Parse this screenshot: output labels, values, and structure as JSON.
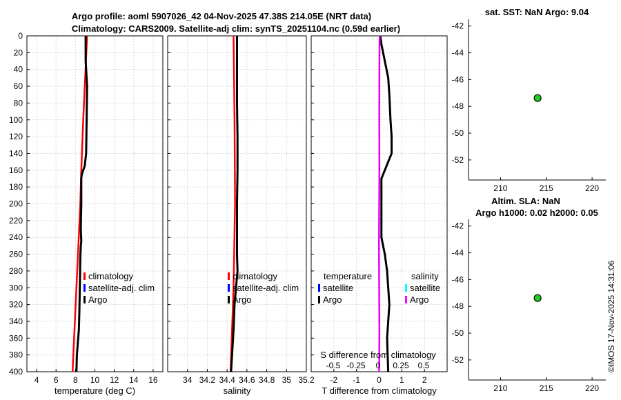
{
  "title_line1": "Argo profile: aoml 5907026_42 04-Nov-2025 47.38S 214.05E (NRT data)",
  "title_line2": "Climatology: CARS2009. Satellite-adj clim: synTS_20251104.nc (0.59d earlier)",
  "sst_title": "sat. SST: NaN Argo: 9.04",
  "sla_title1": "Altim. SLA: NaN",
  "sla_title2": "Argo h1000: 0.02 h2000: 0.05",
  "timestamp": "©IMOS 17-Nov-2025 14:31:06",
  "colors": {
    "climatology": "#ff0000",
    "satellite": "#0000ff",
    "argo": "#000000",
    "salinity_argo": "#ff00ff",
    "salinity_sat": "#00ffff"
  },
  "legend_temp": [
    "climatology",
    "satellite-adj. clim",
    "Argo"
  ],
  "legend_sal": [
    "climatology",
    "satellite-adj. clim",
    "Argo"
  ],
  "legend_diff_t": [
    "temperature",
    "satellite",
    "Argo"
  ],
  "legend_diff_s": [
    "salinity",
    "satellite",
    "Argo"
  ],
  "chart_data": [
    {
      "type": "line",
      "id": "temperature",
      "xlabel": "temperature (deg C)",
      "ylabel": "",
      "xlim": [
        3,
        17
      ],
      "ylim": [
        400,
        0
      ],
      "xticks": [
        "4",
        "6",
        "8",
        "10",
        "12",
        "14",
        "16"
      ],
      "xtick_values": [
        4,
        6,
        8,
        10,
        12,
        14,
        16
      ],
      "yticks": [
        "0",
        "20",
        "40",
        "60",
        "80",
        "100",
        "120",
        "140",
        "160",
        "180",
        "200",
        "220",
        "240",
        "260",
        "280",
        "300",
        "320",
        "340",
        "360",
        "380",
        "400"
      ],
      "series": [
        {
          "name": "climatology",
          "depth": [
            0,
            50,
            100,
            160,
            200,
            250,
            300,
            350,
            400
          ],
          "values": [
            9.2,
            9.0,
            8.8,
            8.6,
            8.5,
            8.3,
            8.1,
            7.9,
            7.7
          ]
        },
        {
          "name": "Argo",
          "depth": [
            0,
            30,
            40,
            60,
            100,
            140,
            150,
            155,
            160,
            165,
            170,
            200,
            230,
            245,
            250,
            265,
            300,
            330,
            350,
            365,
            380,
            400
          ],
          "values": [
            9.05,
            9.05,
            9.1,
            9.2,
            9.15,
            9.1,
            9.0,
            8.95,
            8.8,
            8.65,
            8.6,
            8.6,
            8.55,
            8.6,
            8.55,
            8.5,
            8.45,
            8.4,
            8.35,
            8.25,
            8.15,
            8.1
          ]
        }
      ]
    },
    {
      "type": "line",
      "id": "salinity",
      "xlabel": "salinity",
      "ylabel": "",
      "xlim": [
        33.8,
        35.2
      ],
      "ylim": [
        400,
        0
      ],
      "xticks": [
        "34",
        "34.2",
        "34.4",
        "34.6",
        "34.8",
        "35",
        "35.2"
      ],
      "xtick_values": [
        34,
        34.2,
        34.4,
        34.6,
        34.8,
        35,
        35.2
      ],
      "series": [
        {
          "name": "climatology",
          "depth": [
            0,
            100,
            200,
            300,
            400
          ],
          "values": [
            34.465,
            34.475,
            34.48,
            34.465,
            34.435
          ]
        },
        {
          "name": "Argo",
          "depth": [
            0,
            40,
            80,
            120,
            160,
            200,
            220,
            240,
            260,
            280,
            300,
            320,
            350,
            380,
            400
          ],
          "values": [
            34.5,
            34.5,
            34.5,
            34.505,
            34.505,
            34.5,
            34.5,
            34.5,
            34.5,
            34.505,
            34.49,
            34.475,
            34.465,
            34.45,
            34.44
          ]
        }
      ]
    },
    {
      "type": "line",
      "id": "difference",
      "xlabel": "T difference from climatology",
      "xlabel_top": "S difference from climatology",
      "xlim": [
        -3,
        3
      ],
      "ylim": [
        400,
        0
      ],
      "xticks": [
        "-2",
        "-1",
        "0",
        "1",
        "2"
      ],
      "xtick_values": [
        -2,
        -1,
        0,
        1,
        2
      ],
      "xticks_top": [
        "-0.5",
        "-0.25",
        "0",
        "0.25",
        "0.5"
      ],
      "xtick_top_values": [
        -0.5,
        -0.25,
        0,
        0.25,
        0.5
      ],
      "series": [
        {
          "name": "T Argo",
          "depth": [
            0,
            10,
            30,
            50,
            70,
            100,
            120,
            140,
            160,
            170,
            190,
            240,
            260,
            280,
            320,
            360,
            400
          ],
          "values": [
            0.05,
            0.1,
            0.25,
            0.4,
            0.45,
            0.5,
            0.55,
            0.55,
            0.25,
            0.1,
            0.1,
            0.1,
            0.25,
            0.35,
            0.45,
            0.35,
            0.4
          ]
        },
        {
          "name": "S Argo",
          "depth": [
            0,
            40,
            100,
            160,
            200,
            250,
            300,
            350,
            400
          ],
          "values": [
            0.02,
            0.01,
            0.005,
            0.01,
            0.0,
            -0.01,
            0.0,
            0.01,
            0.0
          ]
        }
      ]
    },
    {
      "type": "scatter",
      "id": "sst-map",
      "title": "sat. SST: NaN Argo: 9.04",
      "xlim": [
        206.5,
        221.5
      ],
      "ylim": [
        -53.5,
        -41.5
      ],
      "xticks": [
        "210",
        "215",
        "220"
      ],
      "xtick_values": [
        210,
        215,
        220
      ],
      "yticks": [
        "-42",
        "-44",
        "-46",
        "-48",
        "-50",
        "-52"
      ],
      "ytick_values": [
        -42,
        -44,
        -46,
        -48,
        -50,
        -52
      ],
      "points": [
        {
          "x": 214.05,
          "y": -47.38
        }
      ]
    },
    {
      "type": "scatter",
      "id": "sla-map",
      "title": "Altim. SLA: NaN / Argo h1000: 0.02 h2000: 0.05",
      "xlim": [
        206.5,
        221.5
      ],
      "ylim": [
        -53.5,
        -41.5
      ],
      "xticks": [
        "210",
        "215",
        "220"
      ],
      "xtick_values": [
        210,
        215,
        220
      ],
      "yticks": [
        "-42",
        "-44",
        "-46",
        "-48",
        "-50",
        "-52"
      ],
      "ytick_values": [
        -42,
        -44,
        -46,
        -48,
        -50,
        -52
      ],
      "points": [
        {
          "x": 214.05,
          "y": -47.38
        }
      ]
    }
  ]
}
